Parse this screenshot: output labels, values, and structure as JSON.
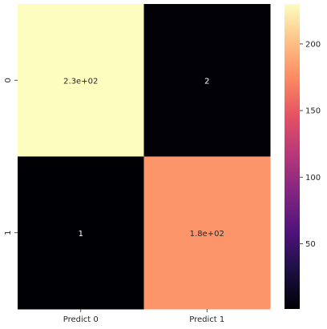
{
  "chart_data": {
    "type": "heatmap",
    "title": "",
    "xlabel": "",
    "ylabel": "",
    "x_categories": [
      "Predict 0",
      "Predict 1"
    ],
    "y_categories": [
      "0",
      "1"
    ],
    "values": [
      [
        230,
        2
      ],
      [
        1,
        180
      ]
    ],
    "annotations": [
      [
        "2.3e+02",
        "2"
      ],
      [
        "1",
        "1.8e+02"
      ]
    ],
    "colormap": "magma",
    "colorbar": {
      "range": [
        1,
        230
      ],
      "ticks": [
        50,
        100,
        150,
        200
      ],
      "tick_labels": [
        "50",
        "100",
        "150",
        "200"
      ]
    },
    "colors": {
      "high": "#fcfdbf",
      "low": "#000004",
      "text_on_dark": "#ffffff",
      "text_on_light": "#262626"
    }
  }
}
